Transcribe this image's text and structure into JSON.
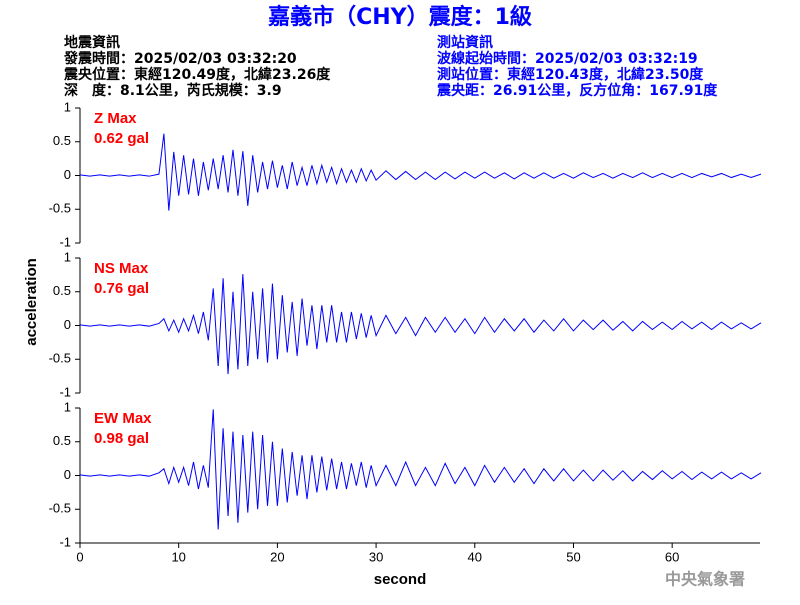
{
  "header": {
    "title": "嘉義市（CHY）震度：1級",
    "left": [
      "地震資訊",
      "發震時間：2025/02/03 03:32:20",
      "震央位置：東經120.49度，北緯23.26度",
      "深　度：8.1公里，芮氏規模：3.9"
    ],
    "right": [
      "測站資訊",
      "波線起始時間：2025/02/03 03:32:19",
      "測站位置：東經120.43度，北緯23.50度",
      "震央距：26.91公里，反方位角：167.91度"
    ],
    "watermark": "中央氣象署"
  },
  "xlabel": "second",
  "ylabel": "acceleration",
  "chart_data": [
    {
      "type": "line",
      "component": "Z Max",
      "max_label": "0.62 gal",
      "color": "#0000ff",
      "label_color": "#ff0000",
      "xlim": [
        0,
        68.9
      ],
      "ylim": [
        -1,
        1
      ],
      "yticks": [
        1,
        0.5,
        0,
        -0.5,
        -1
      ],
      "x": [
        0,
        1,
        2,
        3,
        4,
        5,
        6,
        7,
        8,
        8.5,
        9,
        9.5,
        10,
        10.5,
        11,
        11.5,
        12,
        12.5,
        13,
        13.5,
        14,
        14.5,
        15,
        15.5,
        16,
        16.5,
        17,
        17.5,
        18,
        18.5,
        19,
        19.5,
        20,
        20.5,
        21,
        21.5,
        22,
        22.5,
        23,
        23.5,
        24,
        24.5,
        25,
        25.5,
        26,
        26.5,
        27,
        27.5,
        28,
        28.5,
        29,
        29.5,
        30,
        31,
        32,
        33,
        34,
        35,
        36,
        37,
        38,
        39,
        40,
        41,
        42,
        43,
        44,
        45,
        46,
        47,
        48,
        49,
        50,
        51,
        52,
        53,
        54,
        55,
        56,
        57,
        58,
        59,
        60,
        61,
        62,
        63,
        64,
        65,
        66,
        67,
        68,
        69
      ],
      "values": [
        0.01,
        -0.01,
        0.01,
        -0.01,
        0.01,
        -0.01,
        0.01,
        -0.01,
        0.02,
        0.62,
        -0.52,
        0.35,
        -0.3,
        0.3,
        -0.28,
        0.25,
        -0.3,
        0.2,
        -0.22,
        0.25,
        -0.2,
        0.3,
        -0.25,
        0.38,
        -0.3,
        0.36,
        -0.45,
        0.3,
        -0.25,
        0.2,
        -0.2,
        0.22,
        -0.18,
        0.15,
        -0.2,
        0.2,
        -0.15,
        0.12,
        -0.15,
        0.15,
        -0.12,
        0.15,
        -0.1,
        0.12,
        -0.12,
        0.1,
        -0.1,
        0.08,
        -0.1,
        0.1,
        -0.08,
        0.08,
        -0.07,
        0.07,
        -0.06,
        0.06,
        -0.06,
        0.05,
        -0.06,
        0.05,
        -0.05,
        0.05,
        -0.04,
        0.05,
        -0.04,
        0.04,
        -0.05,
        0.04,
        -0.04,
        0.04,
        -0.04,
        0.03,
        -0.04,
        0.04,
        -0.03,
        0.03,
        -0.04,
        0.03,
        -0.03,
        0.04,
        -0.03,
        0.03,
        -0.03,
        0.03,
        -0.03,
        0.03,
        -0.02,
        0.03,
        -0.03,
        0.02,
        -0.03,
        0.02
      ]
    },
    {
      "type": "line",
      "component": "NS Max",
      "max_label": "0.76 gal",
      "color": "#0000ff",
      "label_color": "#ff0000",
      "xlim": [
        0,
        68.9
      ],
      "ylim": [
        -1,
        1
      ],
      "yticks": [
        1,
        0.5,
        0,
        -0.5,
        -1
      ],
      "x": [
        0,
        1,
        2,
        3,
        4,
        5,
        6,
        7,
        8,
        8.5,
        9,
        9.5,
        10,
        10.5,
        11,
        11.5,
        12,
        12.5,
        13,
        13.5,
        14,
        14.5,
        15,
        15.5,
        16,
        16.5,
        17,
        17.5,
        18,
        18.5,
        19,
        19.5,
        20,
        20.5,
        21,
        21.5,
        22,
        22.5,
        23,
        23.5,
        24,
        24.5,
        25,
        25.5,
        26,
        26.5,
        27,
        27.5,
        28,
        28.5,
        29,
        29.5,
        30,
        31,
        32,
        33,
        34,
        35,
        36,
        37,
        38,
        39,
        40,
        41,
        42,
        43,
        44,
        45,
        46,
        47,
        48,
        49,
        50,
        51,
        52,
        53,
        54,
        55,
        56,
        57,
        58,
        59,
        60,
        61,
        62,
        63,
        64,
        65,
        66,
        67,
        68,
        69
      ],
      "values": [
        0.01,
        -0.01,
        0.01,
        -0.01,
        0.01,
        -0.01,
        0.01,
        -0.01,
        0.03,
        0.1,
        -0.08,
        0.08,
        -0.1,
        0.1,
        -0.08,
        0.15,
        -0.12,
        0.2,
        -0.22,
        0.55,
        -0.6,
        0.7,
        -0.72,
        0.5,
        -0.65,
        0.76,
        -0.6,
        0.5,
        -0.5,
        0.55,
        -0.55,
        0.62,
        -0.5,
        0.45,
        -0.4,
        0.35,
        -0.45,
        0.4,
        -0.3,
        0.3,
        -0.35,
        0.3,
        -0.25,
        0.3,
        -0.25,
        0.2,
        -0.25,
        0.2,
        -0.2,
        0.18,
        -0.18,
        0.15,
        -0.15,
        0.15,
        -0.12,
        0.12,
        -0.15,
        0.12,
        -0.1,
        0.12,
        -0.1,
        0.1,
        -0.12,
        0.12,
        -0.1,
        0.1,
        -0.08,
        0.1,
        -0.1,
        0.08,
        -0.08,
        0.1,
        -0.08,
        0.08,
        -0.06,
        0.08,
        -0.07,
        0.06,
        -0.08,
        0.06,
        -0.06,
        0.05,
        -0.06,
        0.06,
        -0.05,
        0.05,
        -0.06,
        0.05,
        -0.05,
        0.04,
        -0.05,
        0.04
      ]
    },
    {
      "type": "line",
      "component": "EW Max",
      "max_label": "0.98 gal",
      "color": "#0000ff",
      "label_color": "#ff0000",
      "xlim": [
        0,
        68.9
      ],
      "ylim": [
        -1,
        1
      ],
      "yticks": [
        1,
        0.5,
        0,
        -0.5,
        -1
      ],
      "xticks": [
        0,
        10,
        20,
        30,
        40,
        50,
        60
      ],
      "x": [
        0,
        1,
        2,
        3,
        4,
        5,
        6,
        7,
        8,
        8.5,
        9,
        9.5,
        10,
        10.5,
        11,
        11.5,
        12,
        12.5,
        13,
        13.5,
        14,
        14.5,
        15,
        15.5,
        16,
        16.5,
        17,
        17.5,
        18,
        18.5,
        19,
        19.5,
        20,
        20.5,
        21,
        21.5,
        22,
        22.5,
        23,
        23.5,
        24,
        24.5,
        25,
        25.5,
        26,
        26.5,
        27,
        27.5,
        28,
        28.5,
        29,
        29.5,
        30,
        31,
        32,
        33,
        34,
        35,
        36,
        37,
        38,
        39,
        40,
        41,
        42,
        43,
        44,
        45,
        46,
        47,
        48,
        49,
        50,
        51,
        52,
        53,
        54,
        55,
        56,
        57,
        58,
        59,
        60,
        61,
        62,
        63,
        64,
        65,
        66,
        67,
        68,
        69
      ],
      "values": [
        0.01,
        -0.01,
        0.01,
        -0.01,
        0.01,
        -0.01,
        0.01,
        -0.01,
        0.04,
        0.1,
        -0.12,
        0.12,
        -0.1,
        0.12,
        -0.15,
        0.2,
        -0.2,
        0.15,
        -0.18,
        0.98,
        -0.8,
        0.7,
        -0.6,
        0.65,
        -0.7,
        0.6,
        -0.55,
        0.65,
        -0.5,
        0.6,
        -0.45,
        0.5,
        -0.45,
        0.4,
        -0.4,
        0.35,
        -0.3,
        0.3,
        -0.35,
        0.3,
        -0.25,
        0.28,
        -0.22,
        0.25,
        -0.2,
        0.2,
        -0.2,
        0.18,
        -0.15,
        0.2,
        -0.18,
        0.15,
        -0.15,
        0.15,
        -0.15,
        0.2,
        -0.15,
        0.12,
        -0.15,
        0.18,
        -0.12,
        0.12,
        -0.15,
        0.15,
        -0.1,
        0.12,
        -0.1,
        0.1,
        -0.12,
        0.1,
        -0.08,
        0.1,
        -0.08,
        0.08,
        -0.08,
        0.08,
        -0.07,
        0.07,
        -0.08,
        0.06,
        -0.06,
        0.07,
        -0.05,
        0.06,
        -0.06,
        0.05,
        -0.05,
        0.05,
        -0.05,
        0.04,
        -0.05,
        0.04
      ]
    }
  ]
}
